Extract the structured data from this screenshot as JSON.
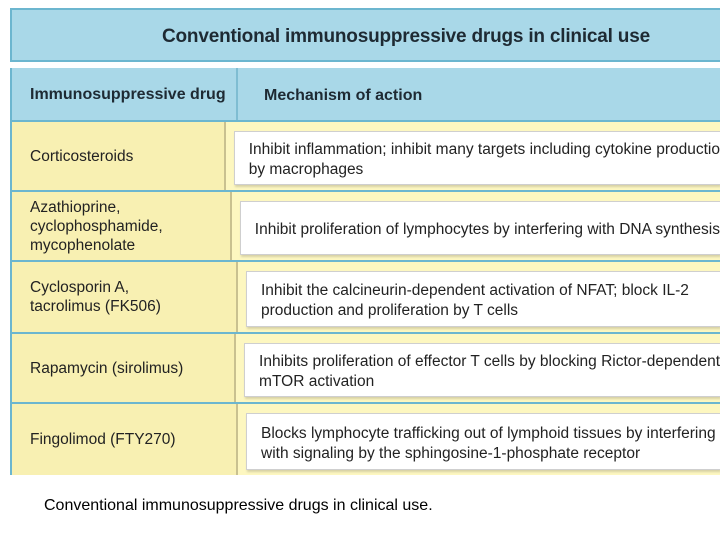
{
  "title": "Conventional immunosuppressive drugs in clinical use",
  "headers": {
    "drug": "Immunosuppressive drug",
    "mechanism": "Mechanism of action"
  },
  "rows": [
    {
      "drug": [
        "Corticosteroids"
      ],
      "mechanism": [
        "Inhibit inflammation; inhibit many targets including cytokine productio",
        "by macrophages"
      ]
    },
    {
      "drug": [
        "Azathioprine,",
        "cyclophosphamide,",
        "mycophenolate"
      ],
      "mechanism": [
        "Inhibit proliferation of lymphocytes by interfering with DNA synthesis"
      ]
    },
    {
      "drug": [
        "Cyclosporin A,",
        "tacrolimus (FK506)"
      ],
      "mechanism": [
        "Inhibit the calcineurin-dependent activation of NFAT; block IL-2",
        "production and proliferation by T cells"
      ]
    },
    {
      "drug": [
        "Rapamycin (sirolimus)"
      ],
      "mechanism": [
        "Inhibits proliferation of effector T cells by blocking Rictor-dependent",
        "mTOR activation"
      ]
    },
    {
      "drug": [
        "Fingolimod (FTY270)"
      ],
      "mechanism": [
        "Blocks lymphocyte trafficking out of lymphoid tissues by interfering",
        "with signaling by the sphingosine-1-phosphate receptor"
      ]
    }
  ],
  "caption": "Conventional immunosuppressive drugs in clinical use."
}
